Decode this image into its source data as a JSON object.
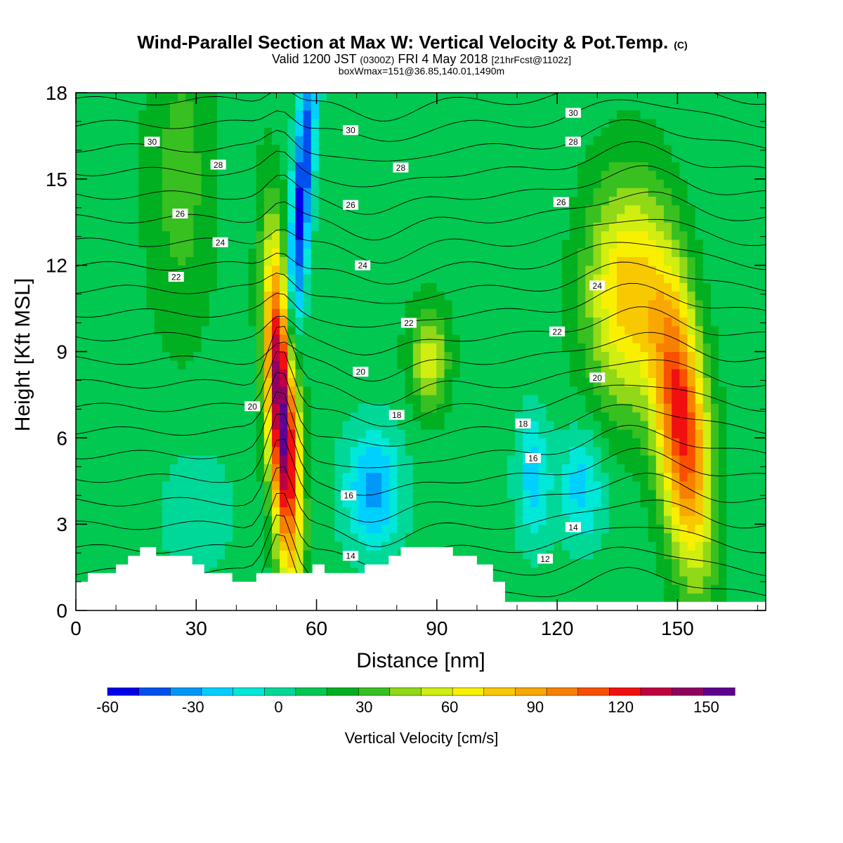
{
  "chart_data": {
    "type": "heatmap",
    "title": "Wind-Parallel Section at Max W: Vertical Velocity & Pot.Temp.",
    "title_mark": "(C)",
    "subtitle_parts": [
      "Valid 1200 JST",
      "(0300Z)",
      "FRI 4 May 2018",
      "[21hrFcst@1102z]"
    ],
    "subtitle2": "boxWmax=151@36.85,140.01,1490m",
    "xlabel": "Distance [nm]",
    "ylabel": "Height [Kft MSL]",
    "xlim": [
      0,
      172
    ],
    "ylim": [
      0,
      18
    ],
    "x_ticks": [
      "0",
      "30",
      "60",
      "90",
      "120",
      "150"
    ],
    "x_tick_values": [
      0,
      30,
      60,
      90,
      120,
      150
    ],
    "y_ticks": [
      "0",
      "3",
      "6",
      "9",
      "12",
      "15",
      "18"
    ],
    "y_tick_values": [
      0,
      3,
      6,
      9,
      12,
      15,
      18
    ],
    "colorbar": {
      "title": "Vertical Velocity [cm/s]",
      "min": -60,
      "max": 160,
      "step": 10,
      "tick_labels": [
        "-60",
        "-30",
        "0",
        "30",
        "60",
        "90",
        "120",
        "150"
      ],
      "tick_values": [
        -60,
        -30,
        0,
        30,
        60,
        90,
        120,
        150
      ],
      "colors": [
        "#0000e8",
        "#0050f0",
        "#0098f8",
        "#00d0ff",
        "#00e8d8",
        "#00d898",
        "#00c850",
        "#00b020",
        "#38c020",
        "#90d818",
        "#d0ee10",
        "#f8f000",
        "#f8c800",
        "#f8a800",
        "#f88000",
        "#f85000",
        "#f01010",
        "#c00040",
        "#900060",
        "#600090"
      ]
    },
    "background_w": 5,
    "features": [
      {
        "name": "updraft-core-left",
        "kind": "updraft",
        "x": 51.5,
        "y": 6.8,
        "w_max": 145,
        "sx": 2.6,
        "sy": 3.8,
        "tilt": -0.35
      },
      {
        "name": "downdraft-core-left",
        "kind": "downdraft",
        "x": 56,
        "y": 14,
        "w_min": -60,
        "sx": 1.8,
        "sy": 4.5,
        "tilt": 0.5
      },
      {
        "name": "downdraft-lower-left",
        "kind": "downdraft",
        "x": 74,
        "y": 4.2,
        "w_min": -40,
        "sx": 5,
        "sy": 1.5,
        "tilt": 0
      },
      {
        "name": "downdraft-mid",
        "kind": "downdraft",
        "x": 114,
        "y": 4.6,
        "w_min": -30,
        "sx": 3,
        "sy": 1.6,
        "tilt": 0
      },
      {
        "name": "downdraft-mid-2",
        "kind": "downdraft",
        "x": 126,
        "y": 4.3,
        "w_min": -30,
        "sx": 4,
        "sy": 1.4,
        "tilt": 0
      },
      {
        "name": "updraft-upper-right",
        "kind": "updraft",
        "x": 137,
        "y": 11,
        "w_max": 60,
        "sx": 7,
        "sy": 2.8,
        "tilt": 0
      },
      {
        "name": "updraft-core-right",
        "kind": "updraft",
        "x": 151,
        "y": 6.5,
        "w_max": 100,
        "sx": 4.5,
        "sy": 3.5,
        "tilt": -0.6
      },
      {
        "name": "updraft-mid",
        "kind": "updraft",
        "x": 88,
        "y": 8.8,
        "w_max": 40,
        "sx": 3.5,
        "sy": 1.3,
        "tilt": 0
      },
      {
        "name": "updraft-left-broad",
        "kind": "updraft",
        "x": 26,
        "y": 15,
        "w_max": 20,
        "sx": 6,
        "sy": 4,
        "tilt": 0
      },
      {
        "name": "downdraft-lower-far-left",
        "kind": "downdraft",
        "x": 30,
        "y": 3.5,
        "w_min": -10,
        "sx": 8,
        "sy": 2,
        "tilt": 0
      }
    ],
    "terrain": {
      "x": [
        0,
        3,
        3,
        10,
        10,
        13,
        13,
        16,
        16,
        20,
        20,
        29,
        29,
        32,
        32,
        39,
        39,
        45,
        45,
        59,
        59,
        62,
        62,
        72,
        72,
        78,
        78,
        81,
        81,
        94,
        94,
        100,
        100,
        104,
        104,
        107,
        107,
        110,
        110,
        172
      ],
      "y": [
        1.0,
        1.0,
        1.3,
        1.3,
        1.6,
        1.6,
        1.9,
        1.9,
        2.2,
        2.2,
        1.9,
        1.9,
        1.6,
        1.6,
        1.3,
        1.3,
        1.0,
        1.0,
        1.3,
        1.3,
        1.6,
        1.6,
        1.3,
        1.3,
        1.6,
        1.6,
        1.9,
        1.9,
        2.2,
        2.2,
        1.9,
        1.9,
        1.6,
        1.6,
        1.0,
        1.0,
        0.3,
        0.3,
        0.3,
        0.3
      ]
    },
    "theta_contours": {
      "levels": [
        11,
        12,
        13,
        14,
        15,
        16,
        17,
        18,
        19,
        20,
        21,
        22,
        23,
        24,
        25,
        26,
        27,
        28,
        29,
        30,
        31,
        32
      ],
      "labels": [
        {
          "text": "30",
          "x": 19,
          "y": 16.3
        },
        {
          "text": "28",
          "x": 35.5,
          "y": 15.5
        },
        {
          "text": "26",
          "x": 26,
          "y": 13.8
        },
        {
          "text": "24",
          "x": 36,
          "y": 12.8
        },
        {
          "text": "22",
          "x": 25,
          "y": 11.6
        },
        {
          "text": "20",
          "x": 44,
          "y": 7.1
        },
        {
          "text": "30",
          "x": 68.5,
          "y": 16.7
        },
        {
          "text": "28",
          "x": 81,
          "y": 15.4
        },
        {
          "text": "26",
          "x": 68.5,
          "y": 14.1
        },
        {
          "text": "24",
          "x": 71.5,
          "y": 12.0
        },
        {
          "text": "22",
          "x": 83,
          "y": 10.0
        },
        {
          "text": "20",
          "x": 71,
          "y": 8.3
        },
        {
          "text": "18",
          "x": 80,
          "y": 6.8
        },
        {
          "text": "16",
          "x": 68,
          "y": 4.0
        },
        {
          "text": "14",
          "x": 68.5,
          "y": 1.9
        },
        {
          "text": "30",
          "x": 124,
          "y": 17.3
        },
        {
          "text": "28",
          "x": 124,
          "y": 16.3
        },
        {
          "text": "26",
          "x": 121,
          "y": 14.2
        },
        {
          "text": "24",
          "x": 130,
          "y": 11.3
        },
        {
          "text": "22",
          "x": 120,
          "y": 9.7
        },
        {
          "text": "20",
          "x": 130,
          "y": 8.1
        },
        {
          "text": "18",
          "x": 111.5,
          "y": 6.5
        },
        {
          "text": "16",
          "x": 114,
          "y": 5.3
        },
        {
          "text": "14",
          "x": 124,
          "y": 2.9
        },
        {
          "text": "12",
          "x": 117,
          "y": 1.8
        }
      ]
    }
  }
}
